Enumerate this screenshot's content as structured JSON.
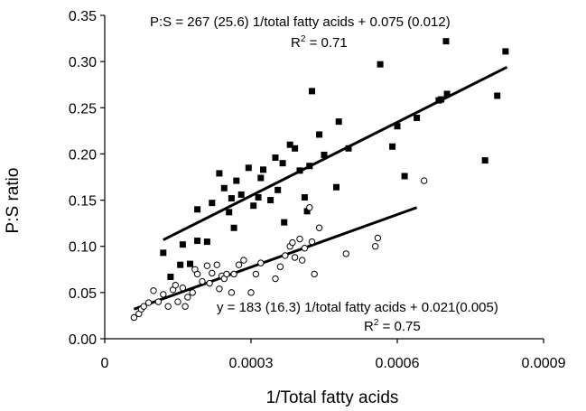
{
  "chart_data": {
    "type": "scatter",
    "title": "",
    "xlabel": "1/Total fatty acids",
    "ylabel": "P:S ratio",
    "xlim": [
      0,
      0.0009
    ],
    "ylim": [
      0,
      0.35
    ],
    "x_ticks": [
      "0",
      "0.0003",
      "0.0006",
      "0.0009"
    ],
    "y_ticks": [
      "0.00",
      "0.05",
      "0.10",
      "0.15",
      "0.20",
      "0.25",
      "0.30",
      "0.35"
    ],
    "grid": false,
    "legend": "none",
    "series": [
      {
        "marker": "filled-square",
        "color": "#000000",
        "points": [
          [
            0.00012,
            0.093
          ],
          [
            0.000135,
            0.067
          ],
          [
            0.000155,
            0.08
          ],
          [
            0.00016,
            0.102
          ],
          [
            0.000175,
            0.081
          ],
          [
            0.00019,
            0.106
          ],
          [
            0.00019,
            0.14
          ],
          [
            0.00021,
            0.105
          ],
          [
            0.00022,
            0.147
          ],
          [
            0.000235,
            0.179
          ],
          [
            0.000245,
            0.163
          ],
          [
            0.000255,
            0.137
          ],
          [
            0.00026,
            0.152
          ],
          [
            0.000265,
            0.12
          ],
          [
            0.00027,
            0.171
          ],
          [
            0.00028,
            0.156
          ],
          [
            0.000295,
            0.185
          ],
          [
            0.000305,
            0.144
          ],
          [
            0.000315,
            0.153
          ],
          [
            0.00032,
            0.174
          ],
          [
            0.000325,
            0.183
          ],
          [
            0.00034,
            0.15
          ],
          [
            0.00035,
            0.196
          ],
          [
            0.000355,
            0.161
          ],
          [
            0.000365,
            0.19
          ],
          [
            0.000368,
            0.126
          ],
          [
            0.00038,
            0.21
          ],
          [
            0.00039,
            0.206
          ],
          [
            0.0004,
            0.182
          ],
          [
            0.00041,
            0.153
          ],
          [
            0.000415,
            0.138
          ],
          [
            0.00042,
            0.187
          ],
          [
            0.000425,
            0.268
          ],
          [
            0.00044,
            0.221
          ],
          [
            0.00045,
            0.199
          ],
          [
            0.000475,
            0.164
          ],
          [
            0.00048,
            0.235
          ],
          [
            0.0005,
            0.206
          ],
          [
            0.000565,
            0.297
          ],
          [
            0.00059,
            0.208
          ],
          [
            0.0006,
            0.23
          ],
          [
            0.000615,
            0.176
          ],
          [
            0.00064,
            0.239
          ],
          [
            0.000685,
            0.258
          ],
          [
            0.00069,
            0.259
          ],
          [
            0.0007,
            0.322
          ],
          [
            0.000702,
            0.265
          ],
          [
            0.00078,
            0.193
          ],
          [
            0.000805,
            0.263
          ],
          [
            0.000822,
            0.311
          ]
        ]
      },
      {
        "marker": "open-circle",
        "color": "#000000",
        "points": [
          [
            6e-05,
            0.023
          ],
          [
            7e-05,
            0.027
          ],
          [
            7.5e-05,
            0.032
          ],
          [
            8e-05,
            0.035
          ],
          [
            9e-05,
            0.039
          ],
          [
            0.0001,
            0.052
          ],
          [
            0.00011,
            0.04
          ],
          [
            0.00012,
            0.048
          ],
          [
            0.00013,
            0.035
          ],
          [
            0.00014,
            0.053
          ],
          [
            0.000145,
            0.058
          ],
          [
            0.00015,
            0.04
          ],
          [
            0.00016,
            0.055
          ],
          [
            0.000165,
            0.035
          ],
          [
            0.00017,
            0.045
          ],
          [
            0.00018,
            0.05
          ],
          [
            0.000185,
            0.075
          ],
          [
            0.00019,
            0.07
          ],
          [
            0.0002,
            0.062
          ],
          [
            0.00021,
            0.079
          ],
          [
            0.000215,
            0.06
          ],
          [
            0.00022,
            0.071
          ],
          [
            0.00023,
            0.08
          ],
          [
            0.000235,
            0.054
          ],
          [
            0.00024,
            0.068
          ],
          [
            0.000245,
            0.065
          ],
          [
            0.00025,
            0.07
          ],
          [
            0.00026,
            0.05
          ],
          [
            0.000265,
            0.07
          ],
          [
            0.000275,
            0.08
          ],
          [
            0.000285,
            0.085
          ],
          [
            0.0003,
            0.05
          ],
          [
            0.00031,
            0.07
          ],
          [
            0.00032,
            0.082
          ],
          [
            0.00035,
            0.065
          ],
          [
            0.00036,
            0.078
          ],
          [
            0.00037,
            0.09
          ],
          [
            0.00038,
            0.1
          ],
          [
            0.000385,
            0.104
          ],
          [
            0.00039,
            0.088
          ],
          [
            0.0004,
            0.108
          ],
          [
            0.000405,
            0.085
          ],
          [
            0.00041,
            0.098
          ],
          [
            0.00042,
            0.142
          ],
          [
            0.000425,
            0.105
          ],
          [
            0.00043,
            0.07
          ],
          [
            0.00044,
            0.12
          ],
          [
            0.000495,
            0.092
          ],
          [
            0.000555,
            0.1
          ],
          [
            0.00056,
            0.109
          ],
          [
            0.000655,
            0.171
          ]
        ]
      }
    ],
    "regression_lines": [
      {
        "x": [
          0.00012,
          0.000825
        ],
        "y": [
          0.107,
          0.294
        ]
      },
      {
        "x": [
          6e-05,
          0.00064
        ],
        "y": [
          0.032,
          0.142
        ]
      }
    ],
    "annotations": [
      {
        "line1": "P:S = 267 (25.6) 1/total fatty acids + 0.075 (0.012)",
        "r2_prefix": "R",
        "r2_sup": "2",
        "r2_value": " = 0.71"
      },
      {
        "line1": "y = 183 (16.3) 1/total fatty acids  + 0.021(0.005)",
        "r2_prefix": "R",
        "r2_sup": "2",
        "r2_value": " = 0.75"
      }
    ]
  }
}
